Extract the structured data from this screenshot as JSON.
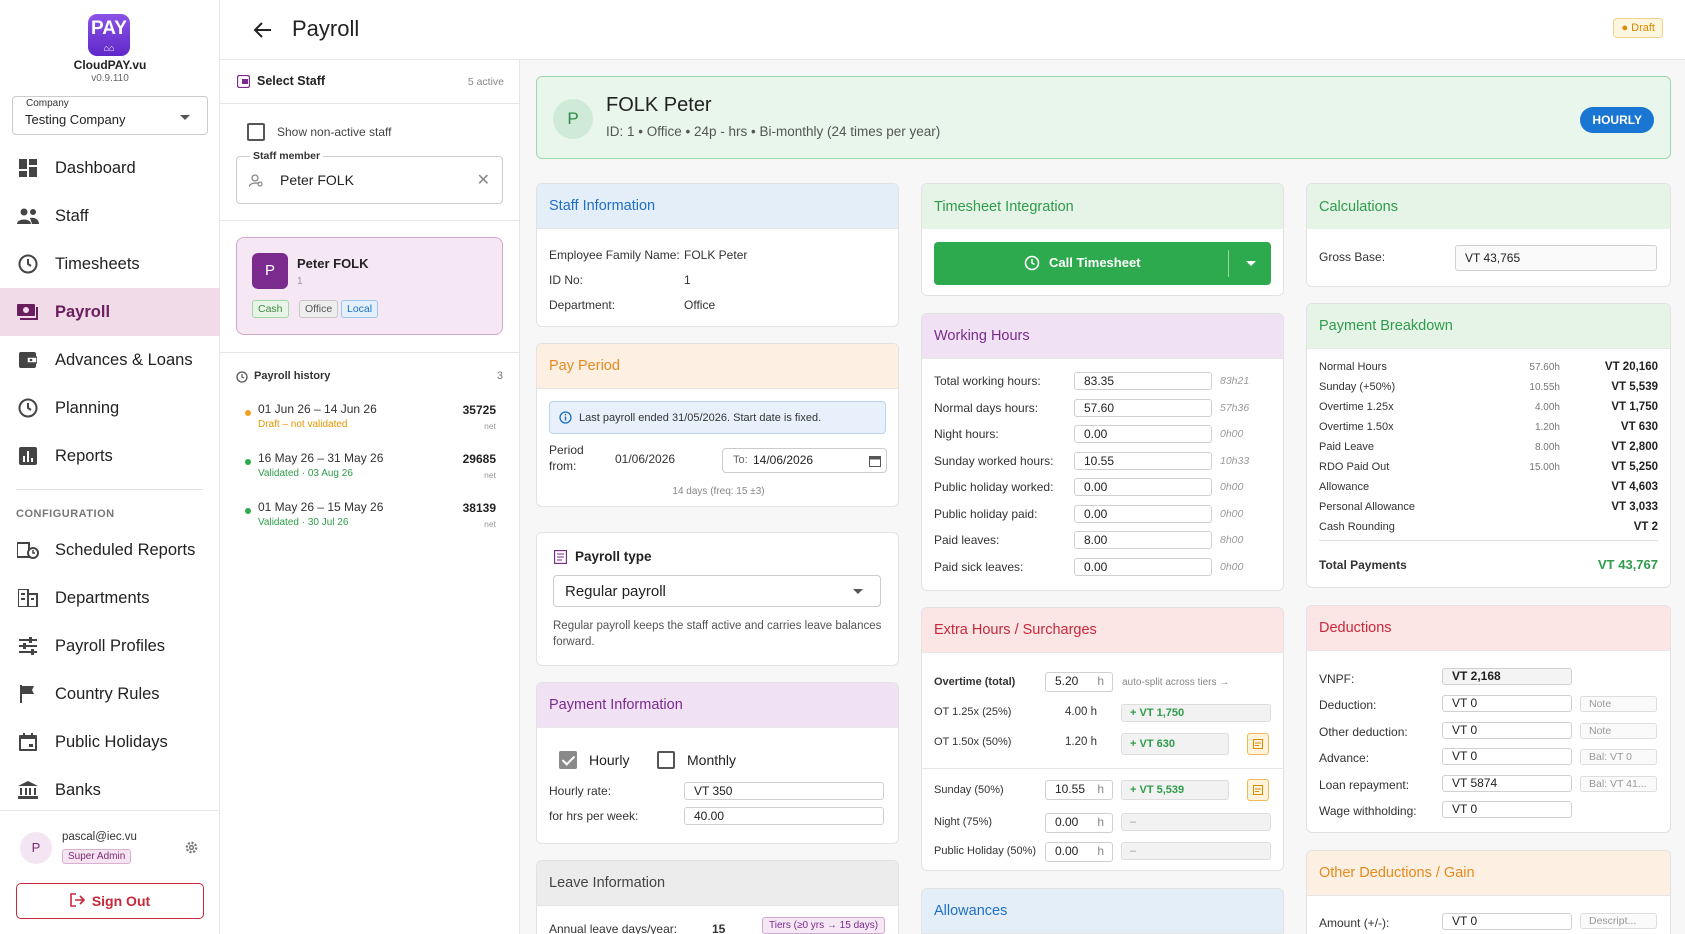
{
  "app": {
    "name": "CloudPAY.vu",
    "logo_text": "PAY",
    "version": "v0.9.110"
  },
  "company": {
    "label": "Company",
    "value": "Testing Company"
  },
  "nav": [
    {
      "label": "Dashboard",
      "icon": "dashboard-icon"
    },
    {
      "label": "Staff",
      "icon": "people-icon"
    },
    {
      "label": "Timesheets",
      "icon": "clock-icon"
    },
    {
      "label": "Payroll",
      "icon": "payments-icon",
      "active": true
    },
    {
      "label": "Advances & Loans",
      "icon": "wallet-icon"
    },
    {
      "label": "Planning",
      "icon": "clock-icon"
    },
    {
      "label": "Reports",
      "icon": "bar-chart-icon"
    }
  ],
  "config_section": "CONFIGURATION",
  "config_nav": [
    {
      "label": "Scheduled Reports",
      "icon": "scheduled-icon"
    },
    {
      "label": "Departments",
      "icon": "building-icon"
    },
    {
      "label": "Payroll Profiles",
      "icon": "tune-icon"
    },
    {
      "label": "Country Rules",
      "icon": "flag-icon"
    },
    {
      "label": "Public Holidays",
      "icon": "calendar-icon"
    },
    {
      "label": "Banks",
      "icon": "bank-icon"
    }
  ],
  "user": {
    "initial": "P",
    "email": "pascal@iec.vu",
    "role": "Super Admin",
    "signout": "Sign Out"
  },
  "header": {
    "title": "Payroll",
    "status": "Draft"
  },
  "staff_panel": {
    "title": "Select Staff",
    "active_count": "5 active",
    "show_nonactive": "Show non-active staff",
    "member_label": "Staff member",
    "member_value": "Peter FOLK",
    "card": {
      "initial": "P",
      "name": "Peter FOLK",
      "id": "1",
      "tags": [
        "Cash",
        "Office",
        "Local"
      ]
    },
    "history_title": "Payroll history",
    "history_count": "3",
    "history": [
      {
        "period": "01 Jun 26 – 14 Jun 26",
        "status": "Draft – not validated",
        "amount": "35725",
        "unit": "net",
        "color": "#f0a020"
      },
      {
        "period": "16 May 26 – 31 May 26",
        "status": "Validated · 03 Aug 26",
        "amount": "29685",
        "unit": "net",
        "color": "#2eaa4e"
      },
      {
        "period": "01 May 26 – 15 May 26",
        "status": "Validated · 30 Jul 26",
        "amount": "38139",
        "unit": "net",
        "color": "#2eaa4e"
      }
    ]
  },
  "employee": {
    "initial": "P",
    "name": "FOLK Peter",
    "meta": "ID: 1 • Office • 24p - hrs • Bi-monthly (24 times per year)",
    "badge": "HOURLY"
  },
  "staff_info": {
    "title": "Staff Information",
    "rows": [
      {
        "label": "Employee Family Name:",
        "value": "FOLK Peter"
      },
      {
        "label": "ID No:",
        "value": "1"
      },
      {
        "label": "Department:",
        "value": "Office"
      }
    ]
  },
  "pay_period": {
    "title": "Pay Period",
    "info": "Last payroll ended 31/05/2026. Start date is fixed.",
    "from_label": "Period from:",
    "from_value": "01/06/2026",
    "to_label": "To:",
    "to_value": "14/06/2026",
    "days_note": "14 days (freq: 15 ±3)"
  },
  "payroll_type": {
    "title": "Payroll type",
    "value": "Regular payroll",
    "desc": "Regular payroll keeps the staff active and carries leave balances forward."
  },
  "payment_info": {
    "title": "Payment Information",
    "hourly": "Hourly",
    "monthly": "Monthly",
    "rate_label": "Hourly rate:",
    "rate_value": "VT 350",
    "hrs_label": "for hrs per week:",
    "hrs_value": "40.00"
  },
  "leave_info": {
    "title": "Leave Information",
    "annual_label": "Annual leave days/year:",
    "annual_value": "15",
    "tiers": "Tiers (≥0 yrs → 15 days)"
  },
  "timesheet": {
    "title": "Timesheet Integration",
    "button": "Call Timesheet"
  },
  "working_hours": {
    "title": "Working Hours",
    "rows": [
      {
        "label": "Total working hours:",
        "value": "83.35",
        "hint": "83h21"
      },
      {
        "label": "Normal days hours:",
        "value": "57.60",
        "hint": "57h36"
      },
      {
        "label": "Night hours:",
        "value": "0.00",
        "hint": "0h00"
      },
      {
        "label": "Sunday worked hours:",
        "value": "10.55",
        "hint": "10h33"
      },
      {
        "label": "Public holiday worked:",
        "value": "0.00",
        "hint": "0h00"
      },
      {
        "label": "Public holiday paid:",
        "value": "0.00",
        "hint": "0h00"
      },
      {
        "label": "Paid leaves:",
        "value": "8.00",
        "hint": "8h00"
      },
      {
        "label": "Paid sick leaves:",
        "value": "0.00",
        "hint": "0h00"
      }
    ]
  },
  "extra_hours": {
    "title": "Extra Hours / Surcharges",
    "overtime_label": "Overtime (total)",
    "overtime_value": "5.20",
    "overtime_unit": "h",
    "overtime_note": "auto-split across tiers →",
    "ot125_label": "OT 1.25x (25%)",
    "ot125_hours": "4.00 h",
    "ot125_amount": "+ VT 1,750",
    "ot150_label": "OT 1.50x (50%)",
    "ot150_hours": "1.20 h",
    "ot150_amount": "+ VT 630",
    "sunday_label": "Sunday (50%)",
    "sunday_value": "10.55",
    "sunday_unit": "h",
    "sunday_amount": "+ VT 5,539",
    "night_label": "Night (75%)",
    "night_value": "0.00",
    "night_unit": "h",
    "night_amount": "–",
    "ph_label": "Public Holiday (50%)",
    "ph_value": "0.00",
    "ph_unit": "h",
    "ph_amount": "–"
  },
  "allowances": {
    "title": "Allowances"
  },
  "calculations": {
    "title": "Calculations",
    "gross_label": "Gross Base:",
    "gross_value": "VT 43,765"
  },
  "breakdown": {
    "title": "Payment Breakdown",
    "rows": [
      {
        "label": "Normal Hours",
        "hours": "57.60h",
        "value": "VT 20,160"
      },
      {
        "label": "Sunday (+50%)",
        "hours": "10.55h",
        "value": "VT 5,539"
      },
      {
        "label": "Overtime 1.25x",
        "hours": "4.00h",
        "value": "VT 1,750"
      },
      {
        "label": "Overtime 1.50x",
        "hours": "1.20h",
        "value": "VT 630"
      },
      {
        "label": "Paid Leave",
        "hours": "8.00h",
        "value": "VT 2,800"
      },
      {
        "label": "RDO Paid Out",
        "hours": "15.00h",
        "value": "VT 5,250"
      },
      {
        "label": "Allowance",
        "hours": "",
        "value": "VT 4,603"
      },
      {
        "label": "Personal Allowance",
        "hours": "",
        "value": "VT 3,033"
      },
      {
        "label": "Cash Rounding",
        "hours": "",
        "value": "VT 2"
      }
    ],
    "total_label": "Total Payments",
    "total_value": "VT 43,767"
  },
  "deductions": {
    "title": "Deductions",
    "vnpf_label": "VNPF:",
    "vnpf_value": "VT 2,168",
    "rows": [
      {
        "label": "Deduction:",
        "value": "VT 0",
        "side": "Note"
      },
      {
        "label": "Other deduction:",
        "value": "VT 0",
        "side": "Note"
      },
      {
        "label": "Advance:",
        "value": "VT 0",
        "side": "Bal: VT 0"
      },
      {
        "label": "Loan repayment:",
        "value": "VT 5874",
        "side": "Bal: VT 41..."
      },
      {
        "label": "Wage withholding:",
        "value": "VT 0",
        "side": ""
      }
    ]
  },
  "other_deductions": {
    "title": "Other Deductions / Gain",
    "amount_label": "Amount (+/-):",
    "amount_value": "VT 0",
    "desc_placeholder": "Descript..."
  }
}
